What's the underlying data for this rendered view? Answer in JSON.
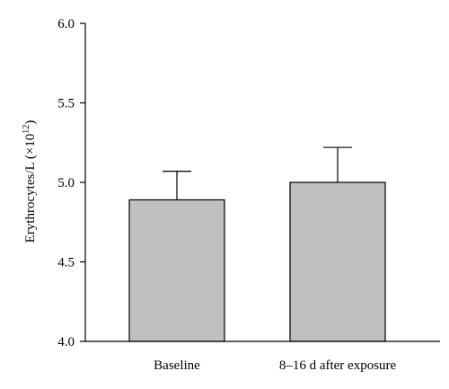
{
  "chart_data": {
    "type": "bar",
    "title": "",
    "xlabel": "",
    "ylabel": "Erythrocytes/L (×10",
    "ylabel_superscript": "12",
    "ylabel_suffix": ")",
    "categories": [
      "Baseline",
      "8–16 d after exposure"
    ],
    "values": [
      4.89,
      5.0
    ],
    "error_upper": [
      0.18,
      0.22
    ],
    "ylim": [
      4.0,
      6.0
    ],
    "yticks": [
      "4.0",
      "4.5",
      "5.0",
      "5.5",
      "6.0"
    ],
    "grid": false,
    "legend": "none",
    "bar_color": "#c0c0c0",
    "edge_color": "#000000"
  }
}
